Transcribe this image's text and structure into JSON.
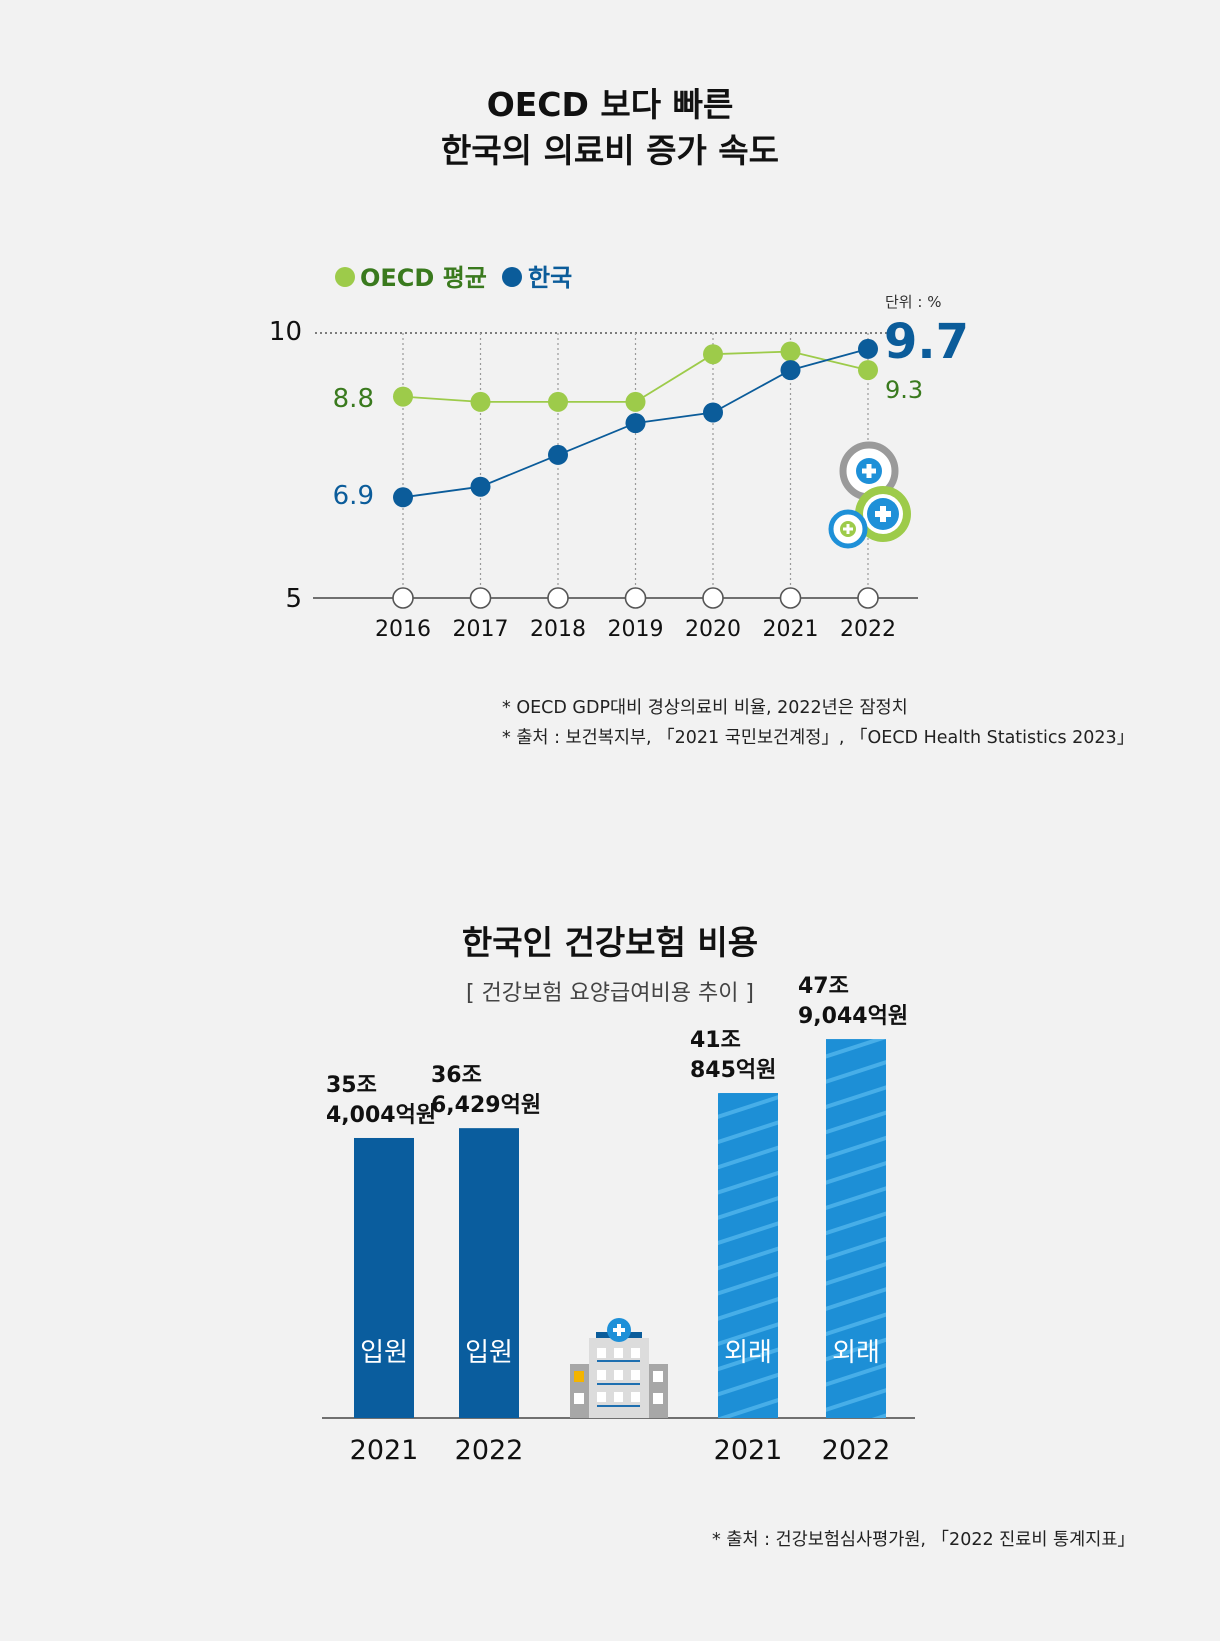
{
  "colors": {
    "oecd": "#9dcb4a",
    "oecd_text": "#3a7a1e",
    "korea": "#0b5c9a",
    "inpatient": "#0a5d9e",
    "outpatient": "#1e90d8",
    "background": "#f2f2f2"
  },
  "line_chart": {
    "title_line1": "OECD 보다 빠른",
    "title_line2": "한국의 의료비 증가 속도",
    "unit": "단위 : %",
    "legend_oecd": "OECD 평균",
    "legend_korea": "한국",
    "y_top_label": "10",
    "y_bottom_label": "5",
    "label_oecd_start": "8.8",
    "label_korea_start": "6.9",
    "label_korea_end": "9.7",
    "label_oecd_end": "9.3",
    "note1": "* OECD GDP대비 경상의료비 비율, 2022년은 잠정치",
    "note2": "* 출처 : 보건복지부, 「2021 국민보건계정」, 「OECD Health Statistics 2023」"
  },
  "bar_chart": {
    "title": "한국인 건강보험 비용",
    "subtitle": "[ 건강보험 요양급여비용 추이 ]",
    "note": "* 출처 : 건강보험심사평가원, 「2022 진료비 통계지표」"
  },
  "chart_data": [
    {
      "type": "line",
      "title": "OECD 보다 빠른 한국의 의료비 증가 속도",
      "x": [
        "2016",
        "2017",
        "2018",
        "2019",
        "2020",
        "2021",
        "2022"
      ],
      "ylim": [
        5,
        10
      ],
      "ylabel": "",
      "unit": "%",
      "grid": "vertical dotted",
      "legend": "top-left",
      "series": [
        {
          "name": "OECD 평균",
          "values": [
            8.8,
            8.7,
            8.7,
            8.7,
            9.6,
            9.65,
            9.3
          ]
        },
        {
          "name": "한국",
          "values": [
            6.9,
            7.1,
            7.7,
            8.3,
            8.5,
            9.3,
            9.7
          ]
        }
      ]
    },
    {
      "type": "bar",
      "title": "한국인 건강보험 비용",
      "subtitle": "[ 건강보험 요양급여비용 추이 ]",
      "unit": "억원",
      "bars": [
        {
          "group": "입원",
          "year": "2021",
          "value": 354004,
          "label_line1": "35조",
          "label_line2": "4,004억원"
        },
        {
          "group": "입원",
          "year": "2022",
          "value": 366429,
          "label_line1": "36조",
          "label_line2": "6,429억원"
        },
        {
          "group": "외래",
          "year": "2021",
          "value": 410845,
          "label_line1": "41조",
          "label_line2": "845억원"
        },
        {
          "group": "외래",
          "year": "2022",
          "value": 479044,
          "label_line1": "47조",
          "label_line2": "9,044억원"
        }
      ]
    }
  ]
}
